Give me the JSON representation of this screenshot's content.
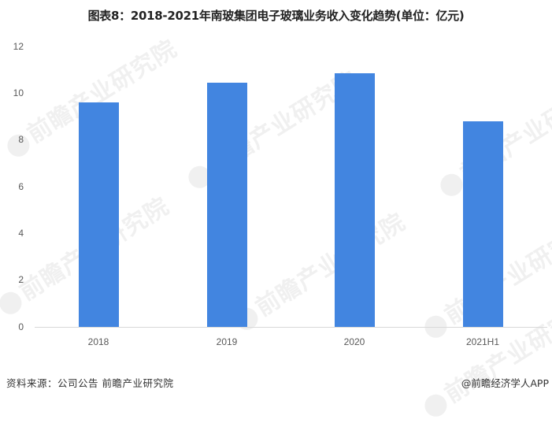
{
  "title": "图表8：2018-2021年南玻集团电子玻璃业务收入变化趋势(单位：亿元)",
  "chart_data": {
    "type": "bar",
    "title": "图表8：2018-2021年南玻集团电子玻璃业务收入变化趋势(单位：亿元)",
    "xlabel": "",
    "ylabel": "",
    "categories": [
      "2018",
      "2019",
      "2020",
      "2021H1"
    ],
    "values": [
      9.6,
      10.45,
      10.85,
      8.8
    ],
    "ylim": [
      0,
      12
    ],
    "yticks": [
      0,
      2,
      4,
      6,
      8,
      10,
      12
    ],
    "grid": false,
    "legend": null,
    "bar_color": "#4285e0"
  },
  "axis": {
    "yticks": [
      "12",
      "10",
      "8",
      "6",
      "4",
      "2",
      "0"
    ],
    "xticks": [
      "2018",
      "2019",
      "2020",
      "2021H1"
    ]
  },
  "watermark": {
    "text": "前瞻产业研究院"
  },
  "footer": {
    "source": "资料来源：公司公告 前瞻产业研究院",
    "credit": "@前瞻经济学人APP"
  }
}
